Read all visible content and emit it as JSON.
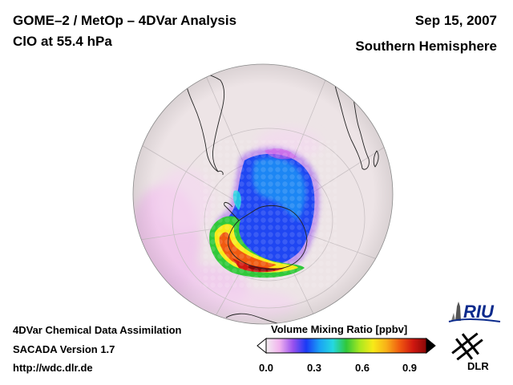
{
  "header": {
    "title": "GOME–2 / MetOp – 4DVar Analysis",
    "subtitle": "ClO at 55.4 hPa",
    "date": "Sep 15, 2007",
    "hemisphere": "Southern Hemisphere"
  },
  "footer": {
    "line1": "4DVar Chemical Data Assimilation",
    "line2": "SACADA Version 1.7",
    "line3": "http://wdc.dlr.de"
  },
  "colorbar": {
    "title": "Volume Mixing Ratio [ppbv]",
    "ticks": [
      "0.0",
      "0.3",
      "0.6",
      "0.9"
    ],
    "range": [
      0.0,
      1.0
    ],
    "colors": [
      "#f3eef1",
      "#f1b3ee",
      "#9a52ee",
      "#1a3af5",
      "#1aa2f5",
      "#25d8e0",
      "#30c83a",
      "#a8e820",
      "#f8ea18",
      "#f8b018",
      "#f05a10",
      "#d01810",
      "#880808"
    ]
  },
  "logos": {
    "riu": "RIU",
    "dlr": "DLR"
  },
  "colors": {
    "globe_background": "#ede4e6",
    "graticule": "#c9c1c4",
    "coastline": "#222222"
  }
}
